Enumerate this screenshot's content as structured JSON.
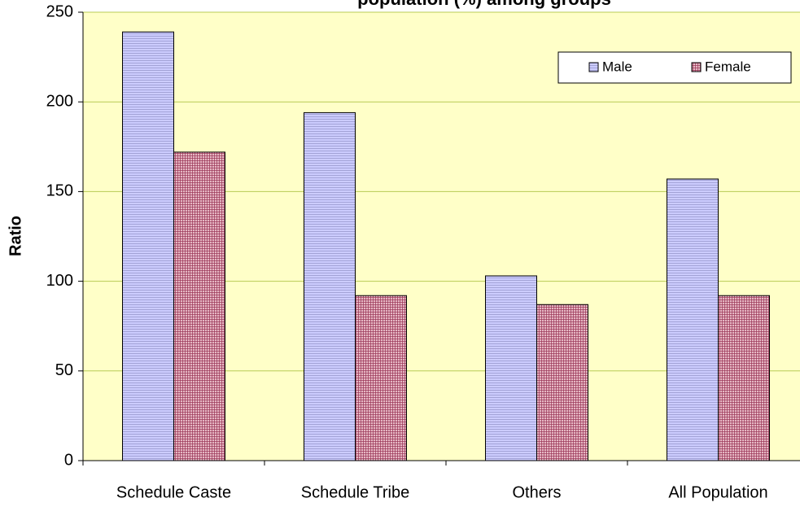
{
  "chart_data": {
    "type": "bar",
    "title": "population (%) among groups",
    "ylabel": "Ratio",
    "categories": [
      "Schedule Caste",
      "Schedule Tribe",
      "Others",
      "All Population"
    ],
    "series": [
      {
        "name": "Male",
        "color": "#ccccff",
        "values": [
          239,
          194,
          103,
          157
        ]
      },
      {
        "name": "Female",
        "color": "#cc99aa",
        "values": [
          172,
          92,
          87,
          92
        ]
      }
    ],
    "ylim": [
      0,
      250
    ],
    "yticks": [
      0,
      50,
      100,
      150,
      200,
      250
    ],
    "grid": true,
    "legend": "upper right"
  }
}
